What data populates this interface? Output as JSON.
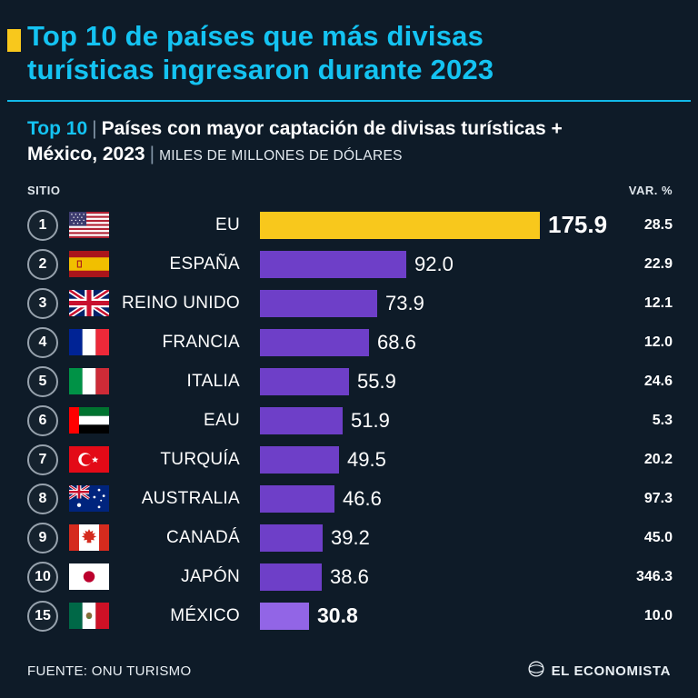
{
  "header": {
    "title": "Top 10 de países que más divisas turísticas ingresaron durante 2023"
  },
  "subtitle": {
    "highlight": "Top 10",
    "separator": "|",
    "text": "Países con mayor captación de divisas turísticas + México, 2023",
    "unit": "MILES DE MILLONES DE DÓLARES"
  },
  "columns": {
    "rank": "SITIO",
    "variation": "VAR. %"
  },
  "chart_data": {
    "type": "bar",
    "orientation": "horizontal",
    "title": "Top 10 de países que más divisas turísticas ingresaron durante 2023",
    "subtitle": "Países con mayor captación de divisas turísticas + México, 2023",
    "value_unit": "MILES DE MILLONES DE DÓLARES",
    "max_value": 175.9,
    "rows": [
      {
        "rank": "1",
        "flag": "us",
        "flag_icon": "flag-us-icon",
        "country": "EU",
        "value": 175.9,
        "var_pct": 28.5
      },
      {
        "rank": "2",
        "flag": "es",
        "flag_icon": "flag-es-icon",
        "country": "ESPAÑA",
        "value": 92.0,
        "var_pct": 22.9
      },
      {
        "rank": "3",
        "flag": "gb",
        "flag_icon": "flag-gb-icon",
        "country": "REINO UNIDO",
        "value": 73.9,
        "var_pct": 12.1
      },
      {
        "rank": "4",
        "flag": "fr",
        "flag_icon": "flag-fr-icon",
        "country": "FRANCIA",
        "value": 68.6,
        "var_pct": 12.0
      },
      {
        "rank": "5",
        "flag": "it",
        "flag_icon": "flag-it-icon",
        "country": "ITALIA",
        "value": 55.9,
        "var_pct": 24.6
      },
      {
        "rank": "6",
        "flag": "ae",
        "flag_icon": "flag-ae-icon",
        "country": "EAU",
        "value": 51.9,
        "var_pct": 5.3
      },
      {
        "rank": "7",
        "flag": "tr",
        "flag_icon": "flag-tr-icon",
        "country": "TURQUÍA",
        "value": 49.5,
        "var_pct": 20.2
      },
      {
        "rank": "8",
        "flag": "au",
        "flag_icon": "flag-au-icon",
        "country": "AUSTRALIA",
        "value": 46.6,
        "var_pct": 97.3
      },
      {
        "rank": "9",
        "flag": "ca",
        "flag_icon": "flag-ca-icon",
        "country": "CANADÁ",
        "value": 39.2,
        "var_pct": 45.0
      },
      {
        "rank": "10",
        "flag": "jp",
        "flag_icon": "flag-jp-icon",
        "country": "JAPÓN",
        "value": 38.6,
        "var_pct": 346.3
      },
      {
        "rank": "15",
        "flag": "mx",
        "flag_icon": "flag-mx-icon",
        "country": "MÉXICO",
        "value": 30.8,
        "var_pct": 10.0
      }
    ],
    "colors": {
      "leader_bar": "#F8C81C",
      "bar": "#6E3FC8",
      "mexico_bar": "#9265E6",
      "accent_cyan": "#14C3F2",
      "background": "#0E1B28"
    }
  },
  "footer": {
    "source": "FUENTE: ONU TURISMO",
    "brand": "EL ECONOMISTA"
  }
}
